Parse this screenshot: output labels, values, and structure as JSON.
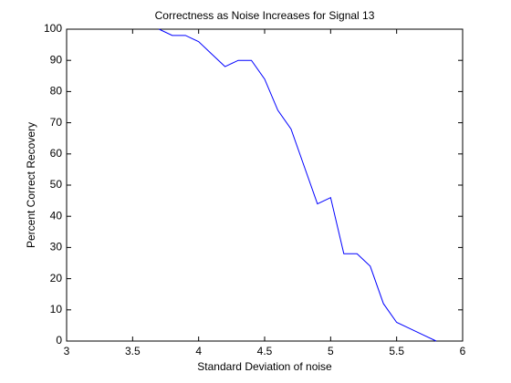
{
  "chart_data": {
    "type": "line",
    "title": "Correctness as Noise Increases for Signal 13",
    "x_label": "Standard Deviation of noise",
    "y_label": "Percent Correct Recovery",
    "x": [
      3.7,
      3.8,
      3.9,
      4.0,
      4.1,
      4.2,
      4.3,
      4.4,
      4.5,
      4.6,
      4.7,
      4.8,
      4.9,
      5.0,
      5.1,
      5.2,
      5.3,
      5.4,
      5.5,
      5.6,
      5.7,
      5.8
    ],
    "series": [
      {
        "color": "#0000ff",
        "values": [
          100,
          98,
          98,
          96,
          92,
          88,
          90,
          90,
          84,
          74,
          68,
          56,
          44,
          46,
          28,
          28,
          24,
          12,
          6,
          4,
          2,
          0
        ]
      }
    ],
    "xlim": [
      3,
      6
    ],
    "xticks": [
      3,
      3.5,
      4,
      4.5,
      5,
      5.5,
      6
    ],
    "ylim": [
      0,
      100
    ],
    "yticks": [
      0,
      10,
      20,
      30,
      40,
      50,
      60,
      70,
      80,
      90,
      100
    ],
    "grid": false
  }
}
